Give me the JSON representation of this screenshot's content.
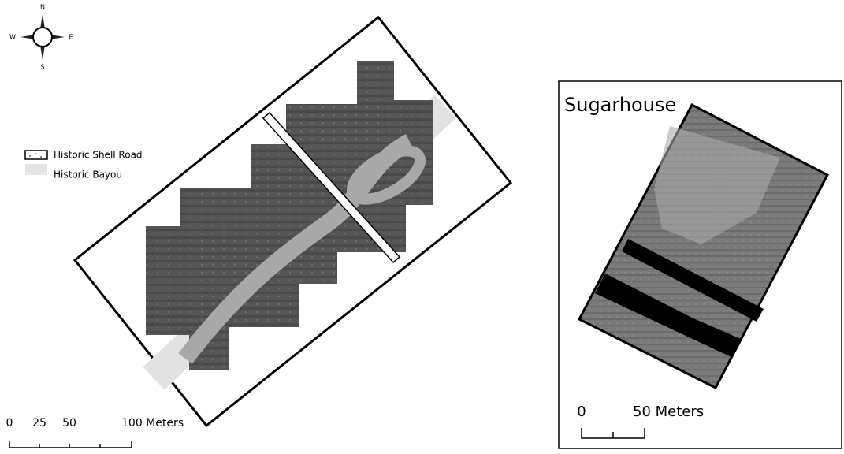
{
  "compass": {
    "north": "N",
    "east": "E",
    "south": "S",
    "west": "W"
  },
  "legend": {
    "items": [
      "Historic Shell Road",
      "Historic Bayou"
    ]
  },
  "scale_bar": {
    "labels": [
      "0",
      "25",
      "50",
      "100 Meters"
    ]
  },
  "inset": {
    "title": "Sugarhouse",
    "scale_labels": [
      "0",
      "50 Meters"
    ]
  }
}
